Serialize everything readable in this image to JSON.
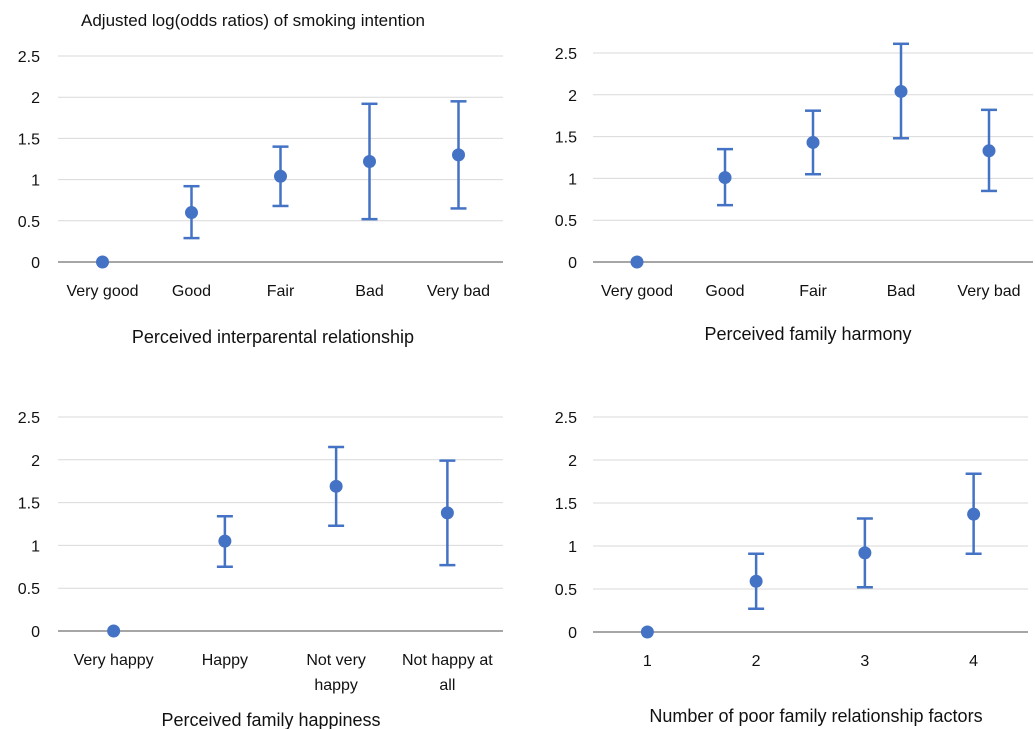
{
  "figure_title": "Adjusted log(odds ratios) of smoking intention",
  "colors": {
    "series": "#4472c4",
    "grid": "#d9d9d9",
    "axis": "#a6a6a6",
    "text": "#111111"
  },
  "chart_data": [
    {
      "type": "scatter",
      "xlabel": "Perceived interparental relationship",
      "ylabel": "",
      "categories": [
        [
          "Very good"
        ],
        [
          "Good"
        ],
        [
          "Fair"
        ],
        [
          "Bad"
        ],
        [
          "Very bad"
        ]
      ],
      "values": [
        0,
        0.6,
        1.04,
        1.22,
        1.3
      ],
      "lower": [
        0,
        0.29,
        0.68,
        0.52,
        0.65
      ],
      "upper": [
        0,
        0.92,
        1.4,
        1.92,
        1.95
      ],
      "yticks": [
        "0",
        "0.5",
        "1",
        "1.5",
        "2",
        "2.5"
      ],
      "ylim": [
        0,
        2.5
      ],
      "grid": true
    },
    {
      "type": "scatter",
      "xlabel": "Perceived family harmony",
      "ylabel": "",
      "categories": [
        [
          "Very good"
        ],
        [
          "Good"
        ],
        [
          "Fair"
        ],
        [
          "Bad"
        ],
        [
          "Very bad"
        ]
      ],
      "values": [
        0,
        1.01,
        1.43,
        2.04,
        1.33
      ],
      "lower": [
        0,
        0.68,
        1.05,
        1.48,
        0.85
      ],
      "upper": [
        0,
        1.35,
        1.81,
        2.61,
        1.82
      ],
      "yticks": [
        "0",
        "0.5",
        "1",
        "1.5",
        "2",
        "2.5"
      ],
      "ylim": [
        0,
        2.5
      ],
      "grid": true
    },
    {
      "type": "scatter",
      "xlabel": "Perceived family happiness",
      "ylabel": "",
      "categories": [
        [
          "Very happy"
        ],
        [
          "Happy"
        ],
        [
          "Not very",
          "happy"
        ],
        [
          "Not happy at",
          "all"
        ]
      ],
      "values": [
        0,
        1.05,
        1.69,
        1.38
      ],
      "lower": [
        0,
        0.75,
        1.23,
        0.77
      ],
      "upper": [
        0,
        1.34,
        2.15,
        1.99
      ],
      "yticks": [
        "0",
        "0.5",
        "1",
        "1.5",
        "2",
        "2.5"
      ],
      "ylim": [
        0,
        2.5
      ],
      "grid": true
    },
    {
      "type": "scatter",
      "xlabel": "Number of poor family relationship factors",
      "ylabel": "",
      "categories": [
        [
          "1"
        ],
        [
          "2"
        ],
        [
          "3"
        ],
        [
          "4"
        ]
      ],
      "values": [
        0,
        0.59,
        0.92,
        1.37
      ],
      "lower": [
        0,
        0.27,
        0.52,
        0.91
      ],
      "upper": [
        0,
        0.91,
        1.32,
        1.84
      ],
      "yticks": [
        "0",
        "0.5",
        "1",
        "1.5",
        "2",
        "2.5"
      ],
      "ylim": [
        0,
        2.5
      ],
      "grid": true
    }
  ]
}
